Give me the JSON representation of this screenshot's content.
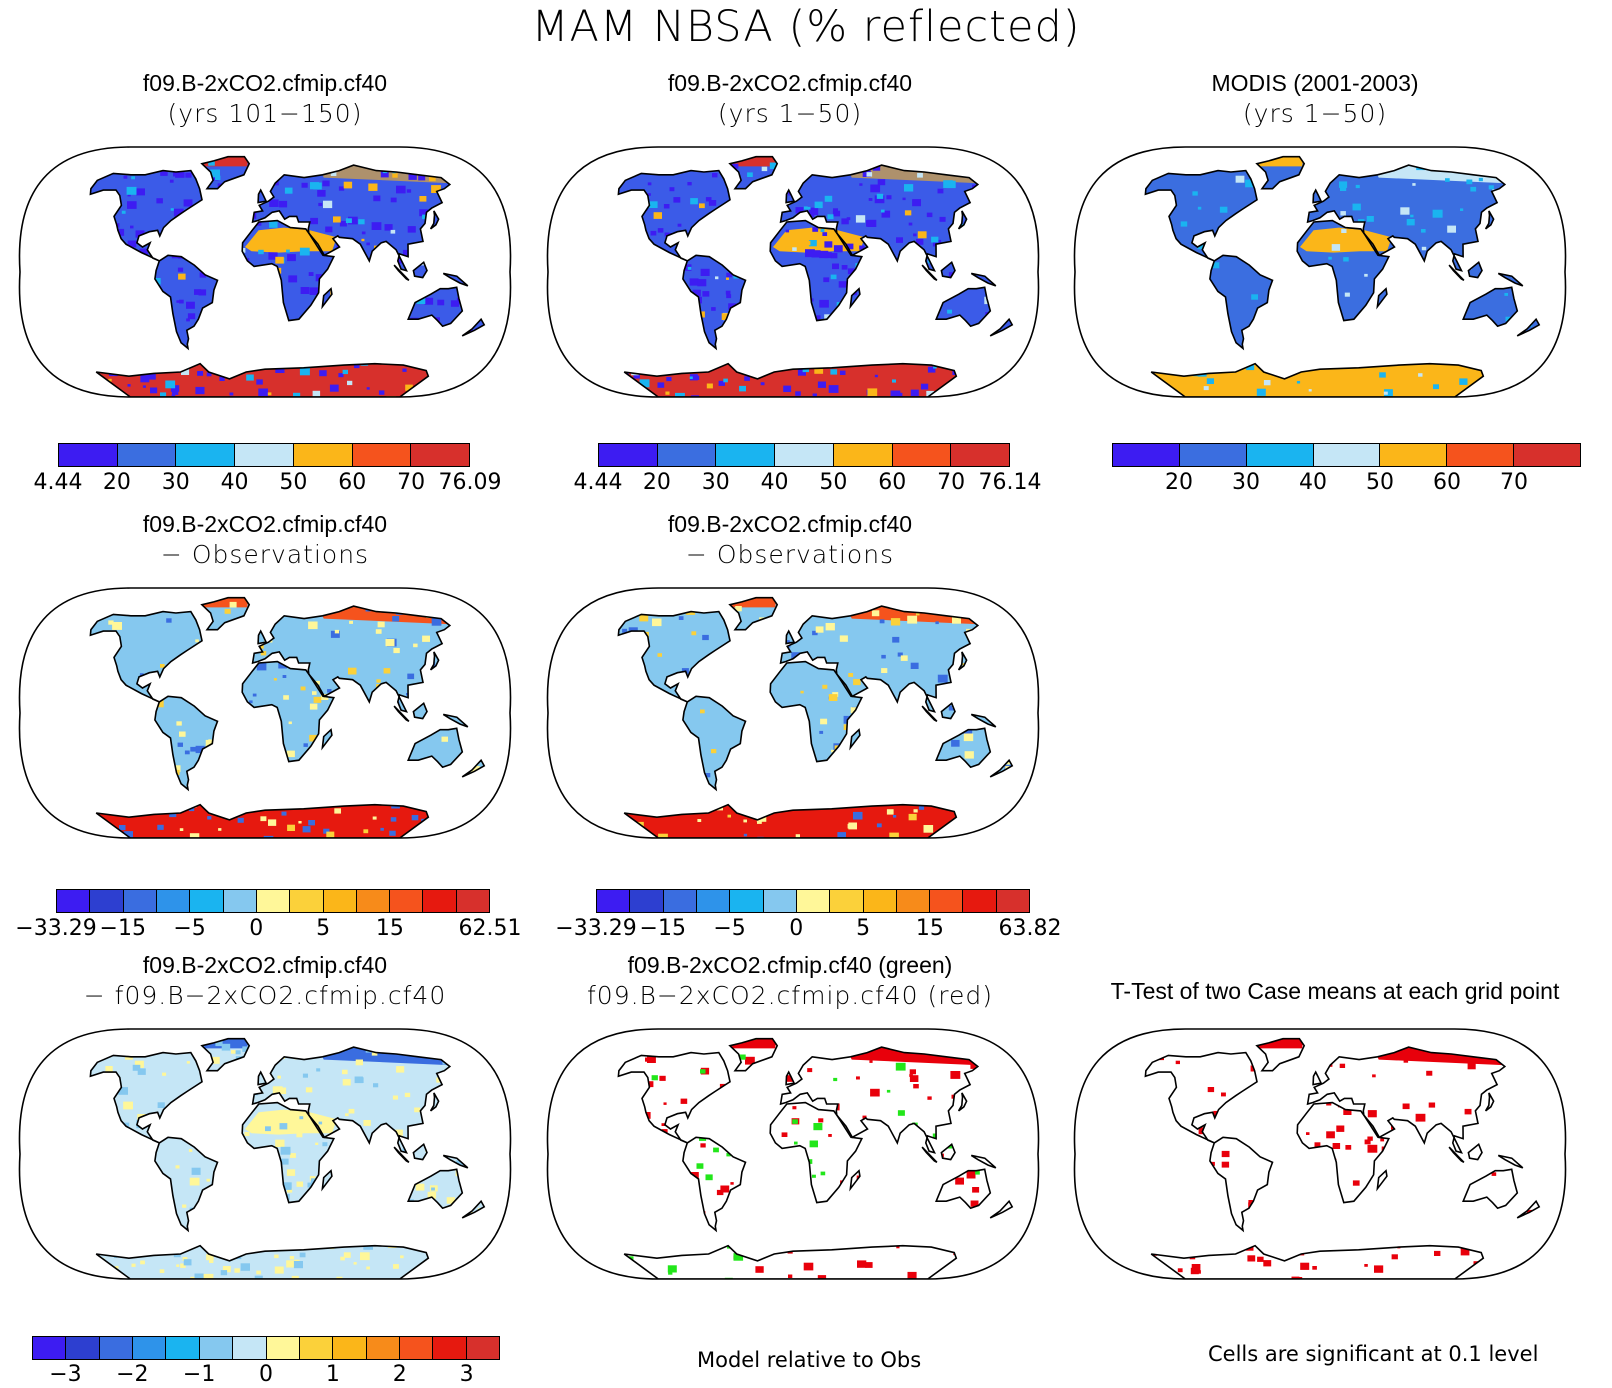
{
  "main_title": "MAM NBSA (% reflected)",
  "panels": {
    "p1": {
      "title1": "f09.B-2xCO2.cfmip.cf40",
      "title2": "(yrs 101−150)",
      "style": "abs"
    },
    "p2": {
      "title1": "f09.B-2xCO2.cfmip.cf40",
      "title2": "(yrs 1−50)",
      "style": "abs"
    },
    "p3": {
      "title1": "MODIS (2001-2003)",
      "title2": "(yrs 1−50)",
      "style": "obs"
    },
    "p4": {
      "title1": "f09.B-2xCO2.cfmip.cf40",
      "title2": "− Observations",
      "style": "diff"
    },
    "p5": {
      "title1": "f09.B-2xCO2.cfmip.cf40",
      "title2": "− Observations",
      "style": "diff"
    },
    "p6": {
      "title1": "f09.B-2xCO2.cfmip.cf40",
      "title2": "− f09.B−2xCO2.cfmip.cf40",
      "style": "casediff"
    },
    "p7": {
      "title1": "f09.B-2xCO2.cfmip.cf40 (green)",
      "title2": "f09.B−2xCO2.cfmip.cf40 (red)",
      "style": "rg"
    },
    "p8": {
      "title1": "T-Test of two Case means at each grid point",
      "title2": "",
      "style": "ttest"
    }
  },
  "colorbars": {
    "abs_colors": [
      "#3d1cf2",
      "#3b6ee0",
      "#1ab4f0",
      "#c5e6f6",
      "#fbb619",
      "#f5531d",
      "#d7302c"
    ],
    "diff_colors": [
      "#3d1cf2",
      "#2d3fd0",
      "#3a6de0",
      "#2e93ea",
      "#1ab4f0",
      "#85c8ef",
      "#fff799",
      "#fbd13a",
      "#fbb619",
      "#f78b1a",
      "#f5531d",
      "#e6190f",
      "#d7302c"
    ],
    "casediff_colors": [
      "#3d1cf2",
      "#2d3fd0",
      "#3a6de0",
      "#2e93ea",
      "#1ab4f0",
      "#85c8ef",
      "#c5e6f6",
      "#fff799",
      "#fbd13a",
      "#fbb619",
      "#f78b1a",
      "#f5531d",
      "#e6190f",
      "#d7302c"
    ],
    "cb1_ticks": [
      "4.44",
      "20",
      "30",
      "40",
      "50",
      "60",
      "70",
      "76.09"
    ],
    "cb2_ticks": [
      "4.44",
      "20",
      "30",
      "40",
      "50",
      "60",
      "70",
      "76.14"
    ],
    "cb3_ticks": [
      "20",
      "30",
      "40",
      "50",
      "60",
      "70"
    ],
    "cb4_ticks": [
      "−33.29",
      "−15",
      "−5",
      "0",
      "5",
      "15",
      "62.51"
    ],
    "cb5_ticks": [
      "−33.29",
      "−15",
      "−5",
      "0",
      "5",
      "15",
      "63.82"
    ],
    "cb6_ticks": [
      "−3",
      "−2",
      "−1",
      "0",
      "1",
      "2",
      "3"
    ]
  },
  "notes": {
    "model_relative": "Model relative to Obs",
    "significance": "Cells are significant at 0.1 level"
  },
  "legend_colors": {
    "ttest_red": "#e8000b",
    "model_green": "#22e61a",
    "ocean": "#ffffff"
  }
}
